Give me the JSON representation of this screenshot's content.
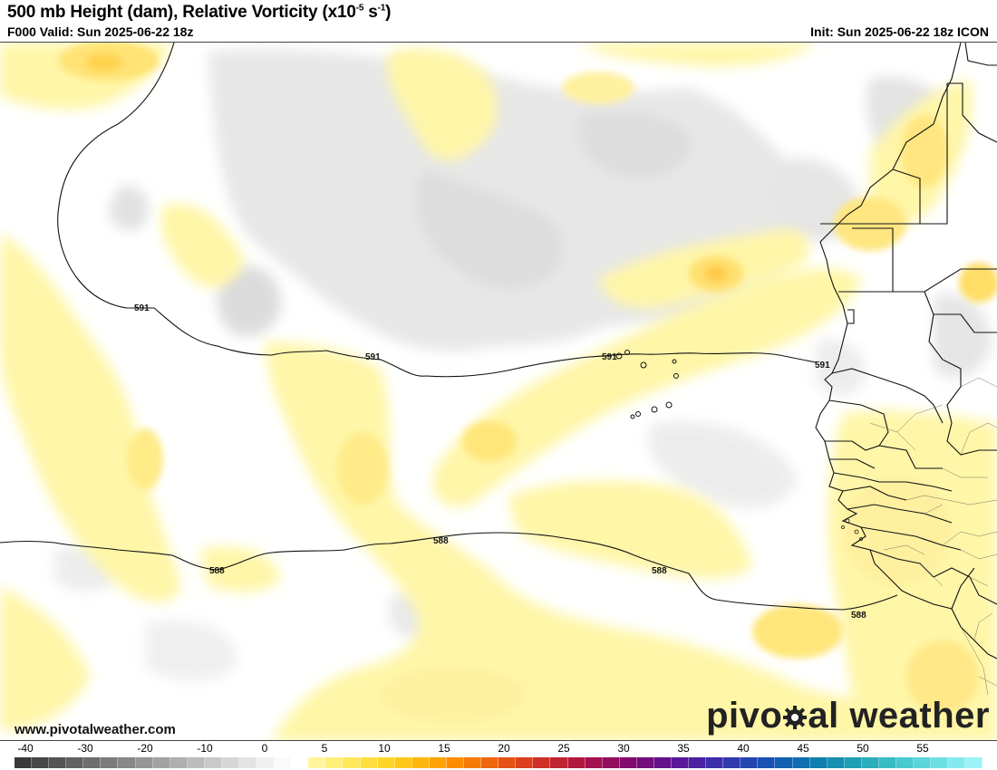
{
  "header": {
    "title_main": "500 mb Height (dam), Relative Vorticity (x10",
    "title_exp": "-5",
    "title_unit": " s",
    "title_unit_exp": "-1",
    "title_close": ")",
    "valid": "F000 Valid: Sun 2025-06-22 18z",
    "init": "Init: Sun 2025-06-22 18z ICON"
  },
  "map": {
    "contours": [
      {
        "label": "591",
        "labels_shown": 4
      },
      {
        "label": "588",
        "labels_shown": 4
      }
    ]
  },
  "footer": {
    "url": "www.pivotalweather.com",
    "brand_left": "pivo",
    "brand_right": "al weather"
  },
  "colorbar": {
    "ticks": [
      "-40",
      "-30",
      "-20",
      "-10",
      "0",
      "5",
      "10",
      "15",
      "20",
      "25",
      "30",
      "35",
      "40",
      "45",
      "50",
      "55"
    ],
    "colors": [
      "#3a3a3a",
      "#474747",
      "#545454",
      "#616161",
      "#6e6e6e",
      "#7b7b7b",
      "#888888",
      "#959595",
      "#a2a2a2",
      "#afafaf",
      "#bcbcbc",
      "#c9c9c9",
      "#d6d6d6",
      "#e3e3e3",
      "#f0f0f0",
      "#fafafa",
      "#ffffff",
      "#fff59c",
      "#fff07a",
      "#ffe85c",
      "#ffdf40",
      "#ffd52a",
      "#ffc81a",
      "#ffb60e",
      "#ffa206",
      "#fc8d04",
      "#f77a06",
      "#ef660c",
      "#e65214",
      "#dc401c",
      "#cf2f26",
      "#c12232",
      "#b2183f",
      "#a2114e",
      "#930d5e",
      "#840b6e",
      "#750c7e",
      "#66108c",
      "#581898",
      "#4a22a2",
      "#3d2eaa",
      "#303aaf",
      "#2446b2",
      "#1a52b3",
      "#1260b2",
      "#0f6fb0",
      "#117faf",
      "#168fb0",
      "#1e9fb4",
      "#2aaebb",
      "#38bcc4",
      "#48c9cf",
      "#5ad5da",
      "#6ee0e5",
      "#84eaee",
      "#9cf2f6"
    ]
  }
}
